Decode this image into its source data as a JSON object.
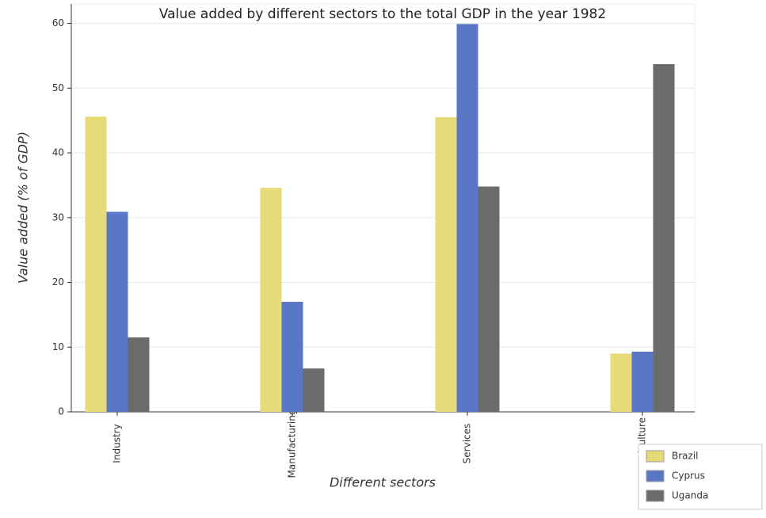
{
  "chart_data": {
    "type": "bar",
    "title": "Value added by different sectors to the total GDP in the year 1982",
    "x_label": "Different sectors",
    "y_label": "Value added (% of GDP)",
    "categories": [
      "Industry",
      "Manufacturing",
      "Services",
      "Agriculture"
    ],
    "series": [
      {
        "name": "Brazil",
        "color": "#e6da79",
        "values": [
          45.6,
          34.6,
          45.5,
          9.0
        ]
      },
      {
        "name": "Cyprus",
        "color": "#5a77c6",
        "values": [
          30.9,
          17.0,
          59.9,
          9.3
        ]
      },
      {
        "name": "Uganda",
        "color": "#6b6b6b",
        "values": [
          11.5,
          6.7,
          34.8,
          53.7
        ]
      }
    ],
    "ylim": [
      0,
      63
    ],
    "yticks": [
      0,
      10,
      20,
      30,
      40,
      50,
      60
    ],
    "grid": true,
    "legend": "bottom-right"
  }
}
